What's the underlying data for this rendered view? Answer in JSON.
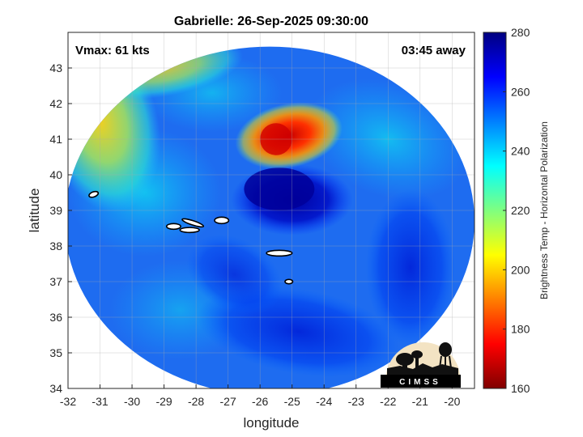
{
  "chart_data": {
    "type": "heatmap",
    "title": "Gabrielle: 26-Sep-2025 09:30:00",
    "xlabel": "longitude",
    "ylabel": "latitude",
    "xlim": [
      -32,
      -19.3
    ],
    "ylim": [
      34,
      44
    ],
    "x_ticks": [
      "-32",
      "-31",
      "-30",
      "-29",
      "-28",
      "-27",
      "-26",
      "-25",
      "-24",
      "-23",
      "-22",
      "-21",
      "-20"
    ],
    "x_tick_values": [
      -32,
      -31,
      -30,
      -29,
      -28,
      -27,
      -26,
      -25,
      -24,
      -23,
      -22,
      -21,
      -20
    ],
    "y_ticks": [
      "34",
      "35",
      "36",
      "37",
      "38",
      "39",
      "40",
      "41",
      "42",
      "43"
    ],
    "y_tick_values": [
      34,
      35,
      36,
      37,
      38,
      39,
      40,
      41,
      42,
      43
    ],
    "grid": true,
    "annotations": {
      "vmax": "Vmax: 61 kts",
      "away": "03:45 away"
    },
    "colorbar": {
      "label": "Brightness Temp - Horizontal Polarization",
      "range": [
        160,
        280
      ],
      "ticks": [
        "160",
        "180",
        "200",
        "220",
        "240",
        "260",
        "280"
      ],
      "tick_values": [
        160,
        180,
        200,
        220,
        240,
        260,
        280
      ],
      "colormap": "jet"
    },
    "swath": {
      "center": [
        -25.7,
        38.7
      ],
      "radius_lon": 6.4,
      "radius_lat": 4.9,
      "background_k": 250
    },
    "features": [
      {
        "name": "storm-core",
        "lon": -25.0,
        "lat": 39.2,
        "k": 266
      },
      {
        "name": "warm-region-north",
        "lon": -25.2,
        "lat": 41.1,
        "k": 188
      },
      {
        "name": "west-band",
        "lon": -31.0,
        "lat": 41.0,
        "k": 225
      },
      {
        "name": "south-band",
        "lon": -24.8,
        "lat": 35.3,
        "k": 262
      },
      {
        "name": "east-band",
        "lon": -21.0,
        "lat": 37.5,
        "k": 262
      }
    ],
    "islands": [
      {
        "name": "flores",
        "lon": -31.2,
        "lat": 39.45
      },
      {
        "name": "faial",
        "lon": -28.7,
        "lat": 38.55
      },
      {
        "name": "pico",
        "lon": -28.2,
        "lat": 38.45
      },
      {
        "name": "sao-jorge",
        "lon": -28.1,
        "lat": 38.65
      },
      {
        "name": "terceira",
        "lon": -27.2,
        "lat": 38.72
      },
      {
        "name": "sao-miguel",
        "lon": -25.4,
        "lat": 37.8
      },
      {
        "name": "santa-maria",
        "lon": -25.1,
        "lat": 37.0
      }
    ]
  },
  "logo": {
    "text": "CIMSS"
  }
}
